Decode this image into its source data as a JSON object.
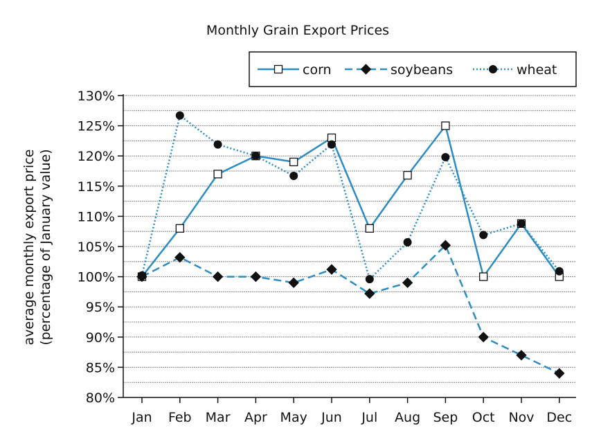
{
  "chart_data": {
    "type": "line",
    "title": "Monthly Grain Export Prices",
    "ylabel_lines": [
      "average monthly export price",
      "(percentage of January value)"
    ],
    "categories": [
      "Jan",
      "Feb",
      "Mar",
      "Apr",
      "May",
      "Jun",
      "Jul",
      "Aug",
      "Sep",
      "Oct",
      "Nov",
      "Dec"
    ],
    "y_ticks": [
      80,
      85,
      90,
      95,
      100,
      105,
      110,
      115,
      120,
      125,
      130
    ],
    "y_tick_labels": [
      "80%",
      "85%",
      "90%",
      "95%",
      "100%",
      "105%",
      "110%",
      "115%",
      "120%",
      "125%",
      "130%"
    ],
    "ylim": [
      80,
      130
    ],
    "minor_grid_step": 2.5,
    "grid": true,
    "legend_position": "top-right",
    "series": [
      {
        "name": "corn",
        "values": [
          100,
          108,
          117,
          120,
          119,
          123,
          108,
          116.8,
          125,
          100,
          108.8,
          100
        ],
        "color": "#2b8cc4",
        "line_style": "solid",
        "marker": "open-square"
      },
      {
        "name": "soybeans",
        "values": [
          100,
          103.2,
          100,
          100,
          99,
          101.2,
          97.2,
          99,
          105.2,
          90,
          87,
          84
        ],
        "color": "#2b8cc4",
        "line_style": "dashed",
        "marker": "filled-diamond"
      },
      {
        "name": "wheat",
        "values": [
          100.2,
          126.7,
          121.9,
          120,
          116.7,
          121.9,
          99.6,
          105.7,
          119.8,
          106.9,
          108.8,
          100.9
        ],
        "color": "#2b8cc4",
        "line_style": "dotted",
        "marker": "filled-circle"
      }
    ]
  }
}
